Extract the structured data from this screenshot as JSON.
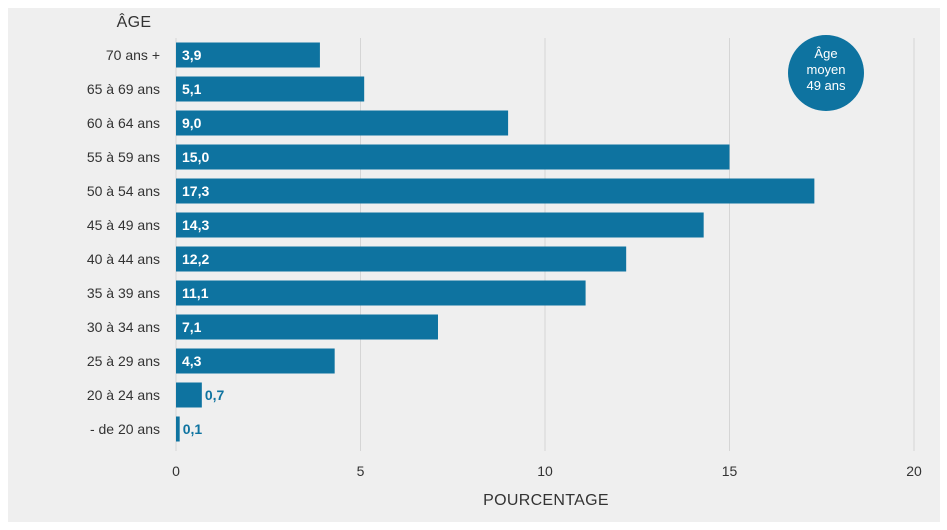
{
  "chart_data": {
    "type": "bar",
    "orientation": "horizontal",
    "categories": [
      "70 ans +",
      "65 à 69 ans",
      "60 à 64 ans",
      "55 à 59 ans",
      "50 à 54 ans",
      "45 à 49 ans",
      "40 à 44 ans",
      "35 à 39 ans",
      "30 à 34 ans",
      "25 à 29 ans",
      "20 à 24 ans",
      "- de 20 ans"
    ],
    "values": [
      3.9,
      5.1,
      9.0,
      15.0,
      17.3,
      14.3,
      12.2,
      11.1,
      7.1,
      4.3,
      0.7,
      0.1
    ],
    "value_labels": [
      "3,9",
      "5,1",
      "9,0",
      "15,0",
      "17,3",
      "14,3",
      "12,2",
      "11,1",
      "7,1",
      "4,3",
      "0,7",
      "0,1"
    ],
    "title": "",
    "ylabel": "ÂGE",
    "xlabel": "POURCENTAGE",
    "xlim": [
      0,
      20
    ],
    "xticks": [
      0,
      5,
      10,
      15,
      20
    ],
    "xtick_labels": [
      "0",
      "5",
      "10",
      "15",
      "20"
    ],
    "grid": true,
    "legend": "none",
    "bar_color": "#0e73a0",
    "label_color_inside": "#ffffff",
    "label_color_outside": "#0e73a0",
    "background": "#efefef",
    "grid_color": "#d5d5d5"
  },
  "annotation": {
    "lines": [
      "Âge",
      "moyen",
      "49 ans"
    ],
    "color": "#0e73a0"
  }
}
